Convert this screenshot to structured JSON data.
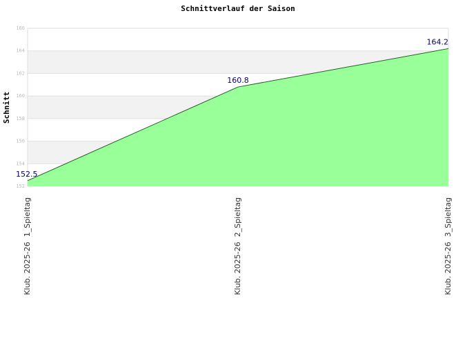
{
  "chart_data": {
    "type": "area",
    "title": "Schnittverlauf der Saison",
    "y_label": "Schnitt",
    "categories": [
      "Klub. 2025-26  1_Spieltag",
      "Klub. 2025-26  2_Spieltag",
      "Klub. 2025-26  3_Spieltag"
    ],
    "values": [
      152.5,
      160.8,
      164.2
    ],
    "color": "#99ff99",
    "line_color": "#007700",
    "ylim": [
      152,
      166
    ],
    "yticks": [
      152,
      154,
      156,
      158,
      160,
      162,
      164,
      166
    ],
    "grid": true
  }
}
